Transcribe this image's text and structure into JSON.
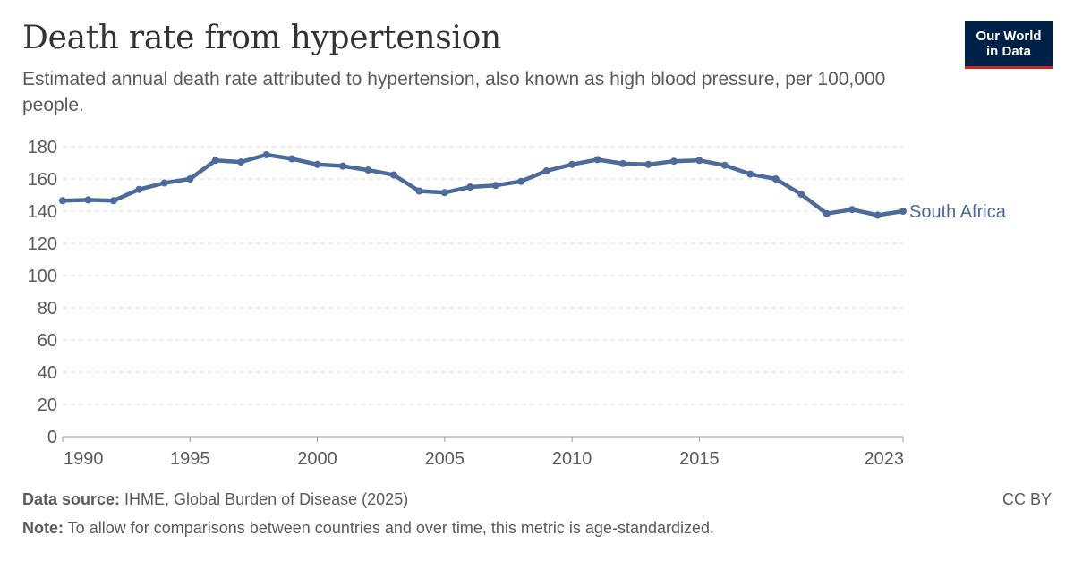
{
  "header": {
    "title": "Death rate from hypertension",
    "subtitle": "Estimated annual death rate attributed to hypertension, also known as high blood pressure, per 100,000 people."
  },
  "logo": {
    "line1": "Our World",
    "line2": "in Data"
  },
  "footer": {
    "source_label": "Data source:",
    "source_text": " IHME, Global Burden of Disease (2025)",
    "note_label": "Note:",
    "note_text": " To allow for comparisons between countries and over time, this metric is age-standardized.",
    "license": "CC BY"
  },
  "colors": {
    "series": "#4c6a9c",
    "grid": "#dddddd",
    "axis": "#666666",
    "text": "#5b5b5b"
  },
  "chart_data": {
    "type": "line",
    "title": "Death rate from hypertension",
    "xlabel": "",
    "ylabel": "",
    "xlim": [
      1990,
      2023
    ],
    "ylim": [
      0,
      180
    ],
    "yticks": [
      0,
      20,
      40,
      60,
      80,
      100,
      120,
      140,
      160,
      180
    ],
    "xticks": [
      1990,
      1995,
      2000,
      2005,
      2010,
      2015,
      2023
    ],
    "grid": true,
    "series": [
      {
        "name": "South Africa",
        "x": [
          1990,
          1991,
          1992,
          1993,
          1994,
          1995,
          1996,
          1997,
          1998,
          1999,
          2000,
          2001,
          2002,
          2003,
          2004,
          2005,
          2006,
          2007,
          2008,
          2009,
          2010,
          2011,
          2012,
          2013,
          2014,
          2015,
          2016,
          2017,
          2018,
          2019,
          2020,
          2021,
          2022,
          2023
        ],
        "values": [
          146.5,
          147,
          146.5,
          153.5,
          157.5,
          160,
          171.5,
          170.5,
          175,
          172.5,
          169,
          168,
          165.5,
          162.5,
          152.5,
          151.5,
          155,
          156,
          158.5,
          165,
          169,
          172,
          169.5,
          169,
          171,
          171.5,
          168.5,
          163,
          160,
          150.5,
          138.5,
          141,
          137.5,
          140
        ]
      }
    ]
  }
}
